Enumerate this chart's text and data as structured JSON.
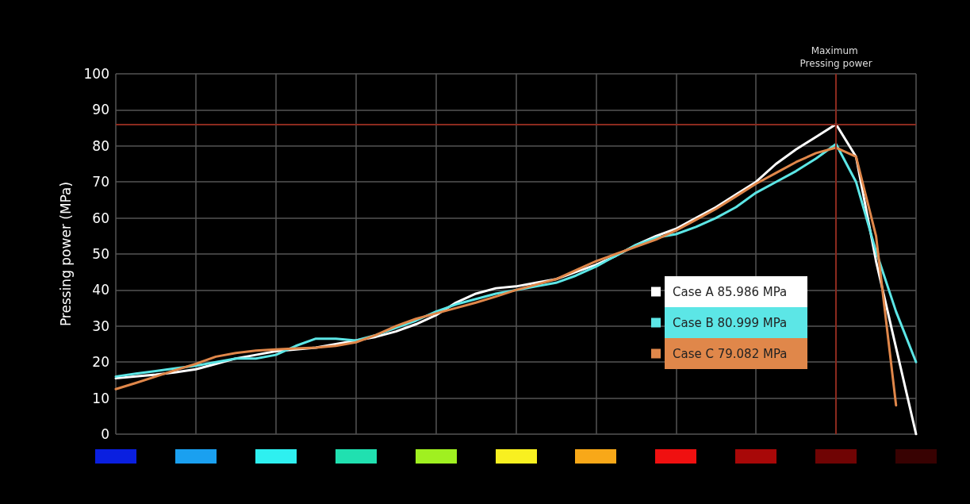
{
  "chart_data": {
    "type": "line",
    "ylabel": "Pressing power (MPa)",
    "categories": [
      null,
      null,
      null,
      null,
      null,
      null,
      null,
      null,
      null,
      null,
      null,
      null,
      null,
      null,
      null,
      null,
      null,
      null,
      null,
      null,
      null,
      null,
      null,
      null,
      null,
      null,
      null,
      null,
      null,
      null,
      null,
      null,
      null,
      null,
      null,
      null,
      null,
      null,
      null,
      null,
      null
    ],
    "ylim": [
      0,
      100
    ],
    "yticks": [
      0,
      10,
      20,
      30,
      40,
      50,
      60,
      70,
      80,
      90,
      100
    ],
    "grid": true,
    "legend": "right",
    "marker": "none",
    "line_style": "solid",
    "series": [
      {
        "name": "Case A 85.986 MPa",
        "color": "#ffffff",
        "values": [
          15.5,
          16,
          16.5,
          17.2,
          18,
          19.5,
          21,
          22,
          23,
          23.5,
          24,
          25,
          26,
          27,
          28.5,
          30.5,
          33,
          36.5,
          39,
          40.5,
          41,
          42,
          43,
          45,
          47,
          49.5,
          52.5,
          55,
          57,
          60,
          63,
          66.5,
          70,
          75,
          79,
          82.5,
          86,
          77,
          48,
          24,
          0
        ]
      },
      {
        "name": "Case B 80.999 MPa",
        "color": "#5ce6e6",
        "values": [
          16,
          16.8,
          17.5,
          18.3,
          19,
          20,
          21,
          21,
          22,
          24.5,
          26.5,
          26.5,
          26,
          27.5,
          29.5,
          31.5,
          34,
          36,
          37.5,
          39,
          40,
          41,
          42,
          44,
          46.5,
          49.5,
          52.5,
          54.5,
          55.5,
          57.5,
          60,
          63,
          67,
          70,
          73,
          76.5,
          80.5,
          70,
          50.7,
          34,
          20
        ]
      },
      {
        "name": "Case C 79.082 MPa",
        "color": "#e0874a",
        "values": [
          12.5,
          14.2,
          16,
          17.8,
          19.5,
          21.5,
          22.5,
          23.2,
          23.5,
          23.8,
          24,
          24.5,
          25.5,
          27.5,
          30,
          32,
          33.5,
          35,
          36.5,
          38.2,
          40,
          41.5,
          43,
          45.5,
          48,
          50,
          52,
          54,
          56.5,
          59.5,
          62.5,
          66,
          69.5,
          72.5,
          75.5,
          78,
          79.5,
          77,
          55,
          8,
          null
        ]
      }
    ],
    "annotations": [
      "Maximum Pressing power"
    ],
    "ref_lines": [
      {
        "axis": "y",
        "value": 85.986,
        "color": "#8b2a1e"
      }
    ]
  }
}
